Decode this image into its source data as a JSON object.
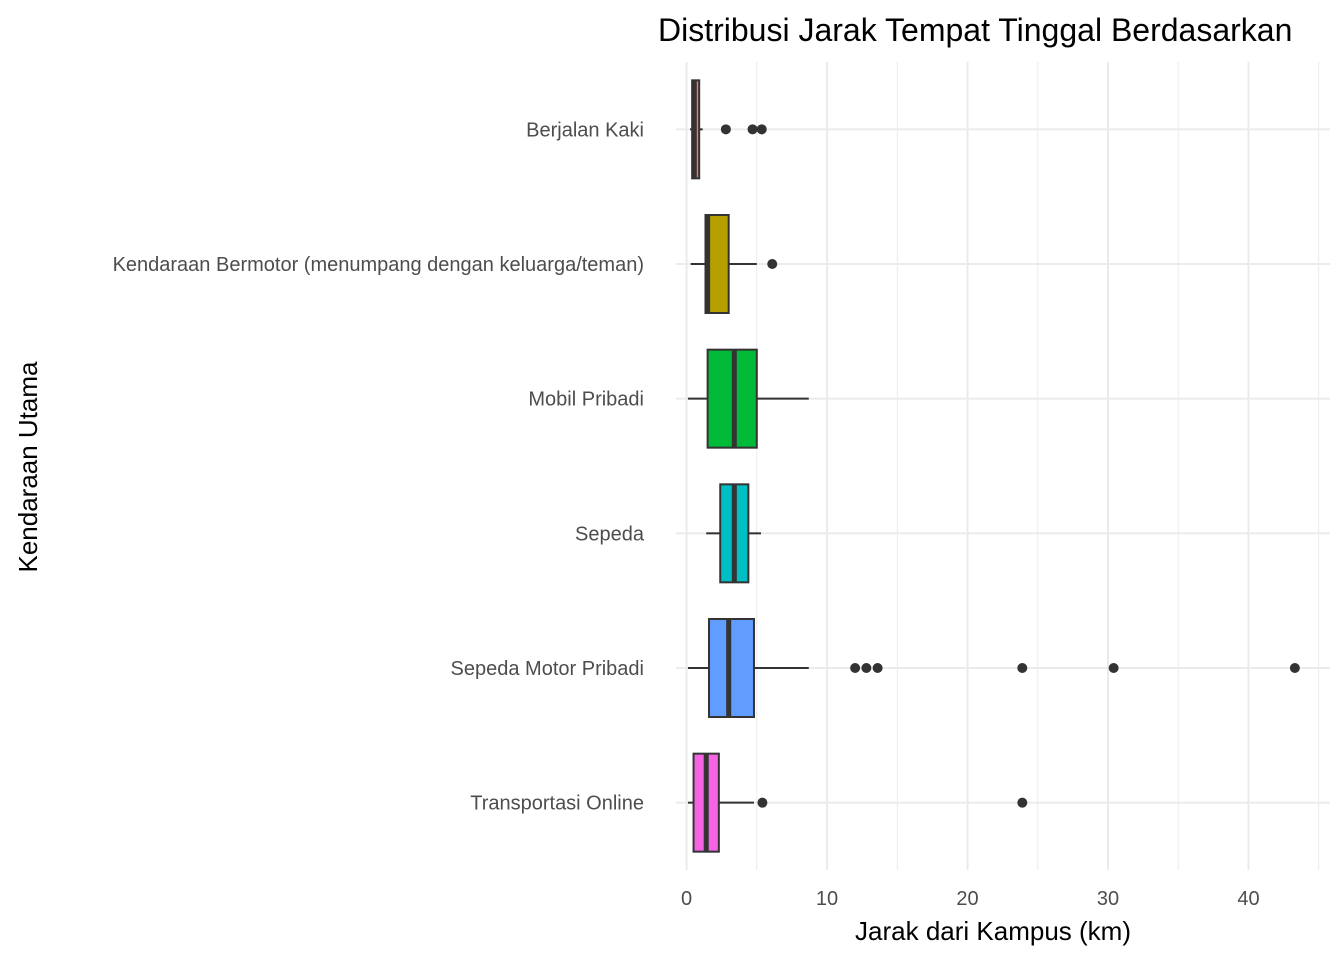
{
  "chart_data": {
    "type": "boxplot",
    "orientation": "horizontal",
    "title": "Distribusi Jarak Tempat Tinggal Berdasarkan",
    "xlabel": "Jarak dari Kampus (km)",
    "ylabel": "Kendaraan Utama",
    "xlim": [
      -0.75,
      45.8
    ],
    "xticks": [
      0,
      10,
      20,
      30,
      40
    ],
    "xtick_labels": [
      "0",
      "10",
      "20",
      "30",
      "40"
    ],
    "grid": true,
    "legend": "none",
    "categories": [
      {
        "name": "Transportasi Online",
        "color": "#F564E3",
        "whisker_low": 0.1,
        "q1": 0.5,
        "median": 1.4,
        "q3": 2.3,
        "whisker_high": 4.8,
        "outliers": [
          5.4,
          23.9
        ]
      },
      {
        "name": "Sepeda Motor Pribadi",
        "color": "#619CFF",
        "whisker_low": 0.1,
        "q1": 1.6,
        "median": 3.0,
        "q3": 4.8,
        "whisker_high": 8.7,
        "outliers": [
          12.0,
          12.8,
          13.6,
          23.9,
          30.4,
          43.3
        ]
      },
      {
        "name": "Sepeda",
        "color": "#00BFC4",
        "whisker_low": 1.4,
        "q1": 2.4,
        "median": 3.4,
        "q3": 4.4,
        "whisker_high": 5.3,
        "outliers": []
      },
      {
        "name": "Mobil Pribadi",
        "color": "#00BA38",
        "whisker_low": 0.1,
        "q1": 1.5,
        "median": 3.4,
        "q3": 5.0,
        "whisker_high": 8.7,
        "outliers": []
      },
      {
        "name": "Kendaraan Bermotor (menumpang dengan keluarga/teman)",
        "color": "#B79F00",
        "whisker_low": 0.3,
        "q1": 1.35,
        "median": 1.5,
        "q3": 3.0,
        "whisker_high": 5.0,
        "outliers": [
          6.1
        ]
      },
      {
        "name": "Berjalan Kaki",
        "color": "#F8766D",
        "whisker_low": 0.25,
        "q1": 0.4,
        "median": 0.55,
        "q3": 0.9,
        "whisker_high": 1.15,
        "outliers": [
          2.8,
          4.7,
          5.35
        ]
      }
    ]
  }
}
